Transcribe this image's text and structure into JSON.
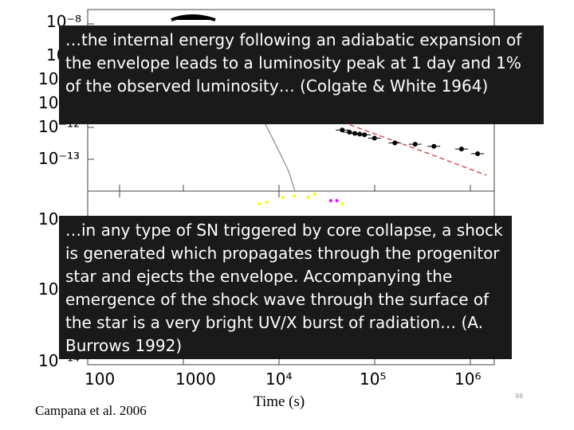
{
  "overlays": {
    "top_text": "…the internal energy following an adiabatic expansion of the envelope leads to a luminosity peak at 1 day and 1% of the observed luminosity… (Colgate & White 1964)",
    "bottom_text": "…in any type of SN triggered by core collapse, a shock is generated which propagates through the progenitor star and ejects the envelope. Accompanying the emergence of the shock wave through the surface of the star is a very bright UV/X burst of radiation… (A. Burrows 1992)"
  },
  "citation": "Campana et al. 2006",
  "slide_number": "98",
  "chart_data": [
    {
      "type": "scatter",
      "panel": "top",
      "y_scale": "log",
      "y_ticks": [
        "10⁻⁸",
        "10",
        "10",
        "10",
        "10⁻¹²",
        "10⁻¹³"
      ],
      "points": [
        {
          "x": 40000,
          "y": 1.2e-12
        },
        {
          "x": 48000,
          "y": 1e-12
        },
        {
          "x": 55000,
          "y": 9e-13
        },
        {
          "x": 62000,
          "y": 8.5e-13
        },
        {
          "x": 70000,
          "y": 8e-13
        },
        {
          "x": 90000,
          "y": 6e-13
        },
        {
          "x": 150000,
          "y": 4e-13
        },
        {
          "x": 250000,
          "y": 3.6e-13
        },
        {
          "x": 400000,
          "y": 3e-13
        },
        {
          "x": 800000,
          "y": 2.4e-13
        },
        {
          "x": 1200000,
          "y": 1.6e-13
        }
      ]
    },
    {
      "type": "scatter",
      "panel": "bottom",
      "y_scale": "log",
      "x_scale": "log",
      "x_ticks": [
        "100",
        "1000",
        "10⁴",
        "10⁵",
        "10⁶"
      ],
      "y_ticks": [
        "10",
        "10",
        "10⁻¹⁴"
      ],
      "xlabel": "Time (s)",
      "points": [
        {
          "x": 5000,
          "y": 0.3,
          "color": "#ffff00"
        },
        {
          "x": 6000,
          "y": 0.35,
          "color": "#ffff00"
        },
        {
          "x": 9000,
          "y": 0.5,
          "color": "#ffff00"
        },
        {
          "x": 12000,
          "y": 0.55,
          "color": "#ffff00"
        },
        {
          "x": 17000,
          "y": 0.5,
          "color": "#ffff00"
        },
        {
          "x": 20000,
          "y": 0.6,
          "color": "#ffff00"
        },
        {
          "x": 30000,
          "y": 0.4,
          "color": "#ff00ff"
        },
        {
          "x": 35000,
          "y": 0.4,
          "color": "#ff00ff"
        },
        {
          "x": 40000,
          "y": 0.3,
          "color": "#ffff00"
        }
      ]
    }
  ]
}
